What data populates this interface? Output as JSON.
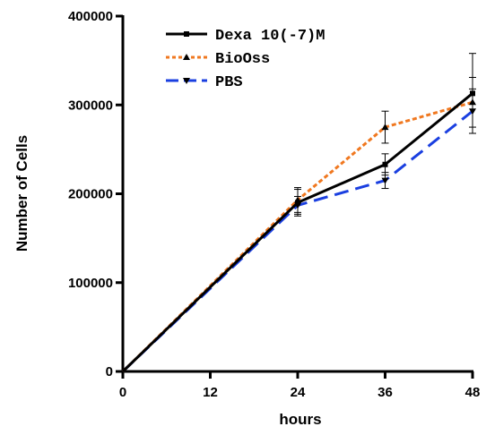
{
  "chart_data": {
    "type": "line",
    "title": "",
    "xlabel": "hours",
    "ylabel": "Number of Cells",
    "x": [
      0,
      12,
      24,
      36,
      48
    ],
    "xlim": [
      0,
      48
    ],
    "ylim": [
      0,
      400000
    ],
    "x_ticks": [
      "0",
      "12",
      "24",
      "36",
      "48"
    ],
    "y_ticks": [
      "0",
      "100000",
      "200000",
      "300000",
      "400000"
    ],
    "grid": false,
    "legend_position": "top-center",
    "series": [
      {
        "name": "Dexa 10(-7)M",
        "color": "#000000",
        "dash": "solid",
        "marker": "square",
        "x": [
          0,
          24,
          36,
          48
        ],
        "values": [
          0,
          190000,
          233000,
          313000
        ],
        "errors": [
          0,
          15000,
          12000,
          45000
        ]
      },
      {
        "name": "BioOss",
        "color": "#f07820",
        "dash": "dotted",
        "marker": "triangle-up",
        "x": [
          0,
          24,
          36,
          48
        ],
        "values": [
          0,
          193000,
          275000,
          303000
        ],
        "errors": [
          0,
          14000,
          18000,
          28000
        ]
      },
      {
        "name": "PBS",
        "color": "#1a3fe0",
        "dash": "dashed",
        "marker": "triangle-down",
        "x": [
          0,
          24,
          36,
          48
        ],
        "values": [
          0,
          187000,
          215000,
          293000
        ],
        "errors": [
          0,
          10000,
          9000,
          25000
        ]
      }
    ]
  }
}
